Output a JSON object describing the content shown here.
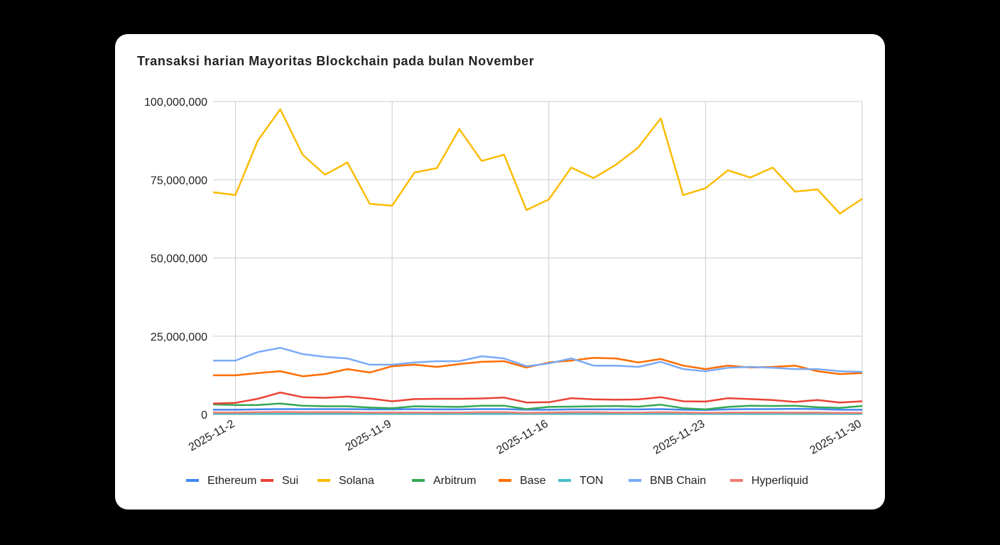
{
  "chart_data": {
    "type": "line",
    "title": "Transaksi harian Mayoritas Blockchain pada bulan November",
    "xlabel": "",
    "ylabel": "",
    "x": [
      "2025-11-1",
      "2025-11-2",
      "2025-11-3",
      "2025-11-4",
      "2025-11-5",
      "2025-11-6",
      "2025-11-7",
      "2025-11-8",
      "2025-11-9",
      "2025-11-10",
      "2025-11-11",
      "2025-11-12",
      "2025-11-13",
      "2025-11-14",
      "2025-11-15",
      "2025-11-16",
      "2025-11-17",
      "2025-11-18",
      "2025-11-19",
      "2025-11-20",
      "2025-11-21",
      "2025-11-22",
      "2025-11-23",
      "2025-11-24",
      "2025-11-25",
      "2025-11-26",
      "2025-11-27",
      "2025-11-28",
      "2025-11-29",
      "2025-11-30"
    ],
    "x_tick_labels": [
      "2025-11-2",
      "2025-11-9",
      "2025-11-16",
      "2025-11-23",
      "2025-11-30"
    ],
    "y_tick_labels": [
      "0",
      "25,000,000",
      "50,000,000",
      "75,000,000",
      "100,000,000"
    ],
    "ylim": [
      0,
      100000000
    ],
    "grid": true,
    "legend_position": "bottom",
    "series": [
      {
        "name": "Ethereum",
        "color": "#4285f4",
        "values": [
          1500000,
          1500000,
          1600000,
          1700000,
          1700000,
          1700000,
          1700000,
          1600000,
          1600000,
          1700000,
          1600000,
          1600000,
          1700000,
          1700000,
          1500000,
          1500000,
          1600000,
          1600000,
          1600000,
          1600000,
          1700000,
          1500000,
          1400000,
          1600000,
          1700000,
          1700000,
          1800000,
          1700000,
          1500000,
          1500000
        ]
      },
      {
        "name": "Sui",
        "color": "#ea4335",
        "values": [
          3500000,
          3700000,
          5000000,
          7000000,
          5500000,
          5300000,
          5700000,
          5100000,
          4200000,
          4900000,
          5000000,
          5000000,
          5100000,
          5400000,
          3800000,
          3900000,
          5200000,
          4800000,
          4700000,
          4800000,
          5500000,
          4200000,
          4100000,
          5200000,
          4900000,
          4600000,
          4000000,
          4600000,
          3800000,
          4200000
        ]
      },
      {
        "name": "Solana",
        "color": "#fbbc04",
        "values": [
          71000000,
          70100000,
          87500000,
          97500000,
          83000000,
          76600000,
          80500000,
          67300000,
          66700000,
          77300000,
          78700000,
          91200000,
          81000000,
          83000000,
          65300000,
          68700000,
          78900000,
          75500000,
          79800000,
          85300000,
          94600000,
          70100000,
          72300000,
          78000000,
          75700000,
          78900000,
          71200000,
          71900000,
          64200000,
          68900000
        ]
      },
      {
        "name": "Arbitrum",
        "color": "#34a853",
        "values": [
          3200000,
          3000000,
          3000000,
          3500000,
          2800000,
          2600000,
          2600000,
          2200000,
          2000000,
          2600000,
          2500000,
          2400000,
          2800000,
          2800000,
          1700000,
          2400000,
          2500000,
          2600000,
          2700000,
          2500000,
          3100000,
          2000000,
          1600000,
          2400000,
          2800000,
          2700000,
          2800000,
          2300000,
          2100000,
          2700000
        ]
      },
      {
        "name": "Base",
        "color": "#ff6d01",
        "values": [
          12500000,
          12500000,
          13200000,
          13800000,
          12200000,
          12900000,
          14500000,
          13400000,
          15400000,
          15900000,
          15200000,
          16100000,
          16800000,
          17000000,
          15000000,
          16600000,
          17200000,
          18100000,
          17900000,
          16600000,
          17700000,
          15600000,
          14500000,
          15600000,
          15000000,
          15200000,
          15600000,
          13800000,
          12900000,
          13200000
        ]
      },
      {
        "name": "TON",
        "color": "#46bdc6",
        "values": [
          200000,
          200000,
          200000,
          200000,
          200000,
          200000,
          200000,
          200000,
          200000,
          200000,
          200000,
          200000,
          200000,
          200000,
          200000,
          200000,
          200000,
          200000,
          200000,
          200000,
          200000,
          200000,
          200000,
          200000,
          200000,
          200000,
          200000,
          200000,
          200000,
          200000
        ]
      },
      {
        "name": "BNB Chain",
        "color": "#7baaf7",
        "values": [
          17200000,
          17200000,
          19900000,
          21300000,
          19300000,
          18400000,
          17900000,
          15900000,
          15900000,
          16600000,
          17000000,
          17000000,
          18600000,
          17900000,
          15400000,
          16300000,
          17900000,
          15600000,
          15600000,
          15200000,
          16800000,
          14500000,
          13800000,
          14900000,
          15200000,
          14900000,
          14500000,
          14500000,
          13800000,
          13600000
        ]
      },
      {
        "name": "Hyperliquid",
        "color": "#f07b72",
        "values": [
          600000,
          600000,
          700000,
          800000,
          700000,
          700000,
          700000,
          600000,
          600000,
          600000,
          600000,
          600000,
          700000,
          700000,
          500000,
          600000,
          700000,
          700000,
          600000,
          600000,
          700000,
          600000,
          500000,
          600000,
          600000,
          600000,
          600000,
          600000,
          500000,
          500000
        ]
      }
    ]
  }
}
